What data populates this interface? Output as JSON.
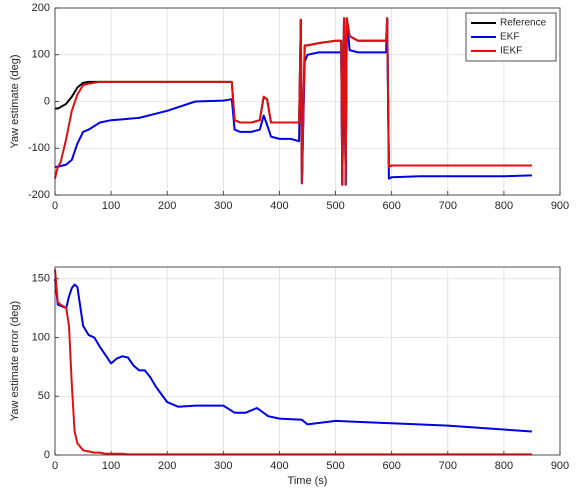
{
  "chart_data": [
    {
      "type": "line",
      "ylabel": "Yaw estimate (deg)",
      "xlim": [
        0,
        900
      ],
      "xticks": [
        0,
        100,
        200,
        300,
        400,
        500,
        600,
        700,
        800,
        900
      ],
      "ylim": [
        -200,
        200
      ],
      "yticks": [
        -200,
        -100,
        0,
        100,
        200
      ],
      "grid": true,
      "legend": "upper right",
      "x": [
        0,
        5,
        10,
        20,
        30,
        40,
        50,
        60,
        80,
        100,
        150,
        200,
        250,
        300,
        315,
        320,
        330,
        350,
        365,
        372,
        378,
        385,
        400,
        420,
        435,
        438,
        440,
        445,
        450,
        470,
        500,
        510,
        512,
        515,
        518,
        520,
        525,
        540,
        570,
        590,
        592,
        595,
        600,
        650,
        700,
        750,
        800,
        850
      ],
      "series": [
        {
          "name": "Reference",
          "color": "#000000",
          "values": [
            -15,
            -15,
            -12,
            -5,
            10,
            30,
            40,
            42,
            42,
            42,
            42,
            42,
            42,
            42,
            42,
            -40,
            -45,
            -45,
            -40,
            10,
            5,
            -45,
            -45,
            -45,
            -45,
            175,
            -175,
            120,
            120,
            125,
            130,
            130,
            -178,
            178,
            -178,
            178,
            140,
            130,
            130,
            130,
            178,
            -140,
            -137,
            -137,
            -137,
            -137,
            -137,
            -137
          ]
        },
        {
          "name": "EKF",
          "color": "#0000e6",
          "values": [
            -140,
            -140,
            -138,
            -135,
            -125,
            -90,
            -65,
            -60,
            -45,
            -40,
            -35,
            -20,
            0,
            2,
            5,
            -60,
            -65,
            -65,
            -60,
            -30,
            -50,
            -75,
            -80,
            -80,
            -85,
            175,
            -175,
            85,
            100,
            105,
            105,
            105,
            -178,
            178,
            -178,
            178,
            110,
            105,
            105,
            105,
            178,
            -165,
            -162,
            -160,
            -160,
            -160,
            -160,
            -158
          ]
        },
        {
          "name": "IEKF",
          "color": "#e01010",
          "values": [
            -165,
            -140,
            -130,
            -80,
            -20,
            15,
            35,
            38,
            42,
            42,
            42,
            42,
            42,
            42,
            42,
            -40,
            -45,
            -45,
            -40,
            10,
            5,
            -45,
            -45,
            -45,
            -45,
            175,
            -175,
            120,
            120,
            125,
            130,
            130,
            -178,
            178,
            -178,
            178,
            140,
            130,
            130,
            130,
            178,
            -140,
            -137,
            -137,
            -137,
            -137,
            -137,
            -137
          ]
        }
      ]
    },
    {
      "type": "line",
      "xlabel": "Time (s)",
      "ylabel": "Yaw estimate error (deg)",
      "xlim": [
        0,
        900
      ],
      "xticks": [
        0,
        100,
        200,
        300,
        400,
        500,
        600,
        700,
        800,
        900
      ],
      "ylim": [
        0,
        160
      ],
      "yticks": [
        0,
        50,
        100,
        150
      ],
      "grid": true,
      "x": [
        0,
        5,
        10,
        20,
        25,
        30,
        35,
        40,
        50,
        60,
        70,
        80,
        90,
        100,
        110,
        120,
        130,
        140,
        150,
        160,
        170,
        180,
        200,
        220,
        250,
        300,
        320,
        340,
        360,
        380,
        400,
        440,
        450,
        500,
        550,
        600,
        700,
        850
      ],
      "series": [
        {
          "color": "#0000e6",
          "values": [
            150,
            128,
            127,
            125,
            135,
            142,
            145,
            143,
            110,
            102,
            100,
            92,
            85,
            78,
            82,
            84,
            83,
            76,
            72,
            72,
            66,
            58,
            45,
            41,
            42,
            42,
            36,
            36,
            40,
            33,
            31,
            30,
            26,
            29,
            28,
            27,
            25,
            20
          ]
        },
        {
          "color": "#e01010",
          "values": [
            158,
            130,
            128,
            125,
            110,
            60,
            20,
            10,
            4,
            3,
            2,
            2,
            1,
            1,
            1,
            1,
            0.5,
            0.5,
            0.5,
            0.5,
            0.5,
            0.5,
            0.5,
            0.5,
            0.5,
            0.5,
            0.5,
            0.5,
            0.5,
            0.5,
            0.5,
            0.5,
            0.5,
            0.5,
            0.5,
            0.5,
            0.5,
            0.5
          ]
        }
      ]
    }
  ]
}
